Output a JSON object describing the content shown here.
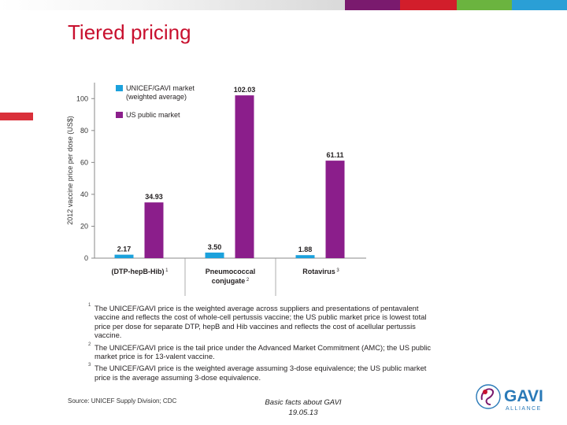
{
  "slide": {
    "title": "Tiered pricing",
    "source": "Source: UNICEF Supply Division; CDC",
    "footer_line1": "Basic facts about GAVI",
    "footer_line2": "19.05.13",
    "logo_text": "GAVI",
    "logo_subtext": "ALLIANCE",
    "colors": {
      "title": "#c8102e",
      "accent_red": "#d9303a",
      "bar_unicef": "#1ba1dc",
      "bar_us": "#8b1e8b",
      "top_segments": [
        "#7a1a6e",
        "#d21e2b",
        "#6bb43f",
        "#2a9fd6",
        "#e8e8e8"
      ]
    }
  },
  "chart_data": {
    "type": "bar",
    "ylabel": "2012 vaccine price per dose (US$)",
    "ylim": [
      0,
      110
    ],
    "yticks": [
      0,
      20,
      40,
      60,
      80,
      100
    ],
    "categories": [
      {
        "line1": "(DTP-hepB-Hib)",
        "sup": "1",
        "line2": ""
      },
      {
        "line1": "Pneumococcal",
        "sup": "2",
        "line2": "conjugate"
      },
      {
        "line1": "Rotavirus",
        "sup": "3",
        "line2": ""
      }
    ],
    "series": [
      {
        "name": "UNICEF/GAVI market (weighted average)",
        "legend_line1": "UNICEF/GAVI market",
        "legend_line2": "(weighted average)",
        "color": "#1ba1dc",
        "values": [
          2.17,
          3.5,
          1.88
        ],
        "labels": [
          "2.17",
          "3.50",
          "1.88"
        ]
      },
      {
        "name": "US public market",
        "legend_line1": "US public market",
        "legend_line2": "",
        "color": "#8b1e8b",
        "values": [
          34.93,
          102.03,
          61.11
        ],
        "labels": [
          "34.93",
          "102.03",
          "61.11"
        ]
      }
    ],
    "notes": [
      {
        "num": "1",
        "text": "The UNICEF/GAVI price is the weighted average across suppliers and presentations of pentavalent vaccine and reflects the cost of whole-cell pertussis vaccine; the US public market price is lowest total price per dose for separate DTP, hepB and Hib vaccines and reflects the cost of acellular pertussis vaccine."
      },
      {
        "num": "2",
        "text": "The UNICEF/GAVI price is the tail price under the Advanced Market Commitment (AMC); the US public market price is for 13-valent vaccine."
      },
      {
        "num": "3",
        "text": "The UNICEF/GAVI price is the weighted average assuming 3-dose equivalence; the US public market price is the average assuming 3-dose equivalence."
      }
    ]
  }
}
